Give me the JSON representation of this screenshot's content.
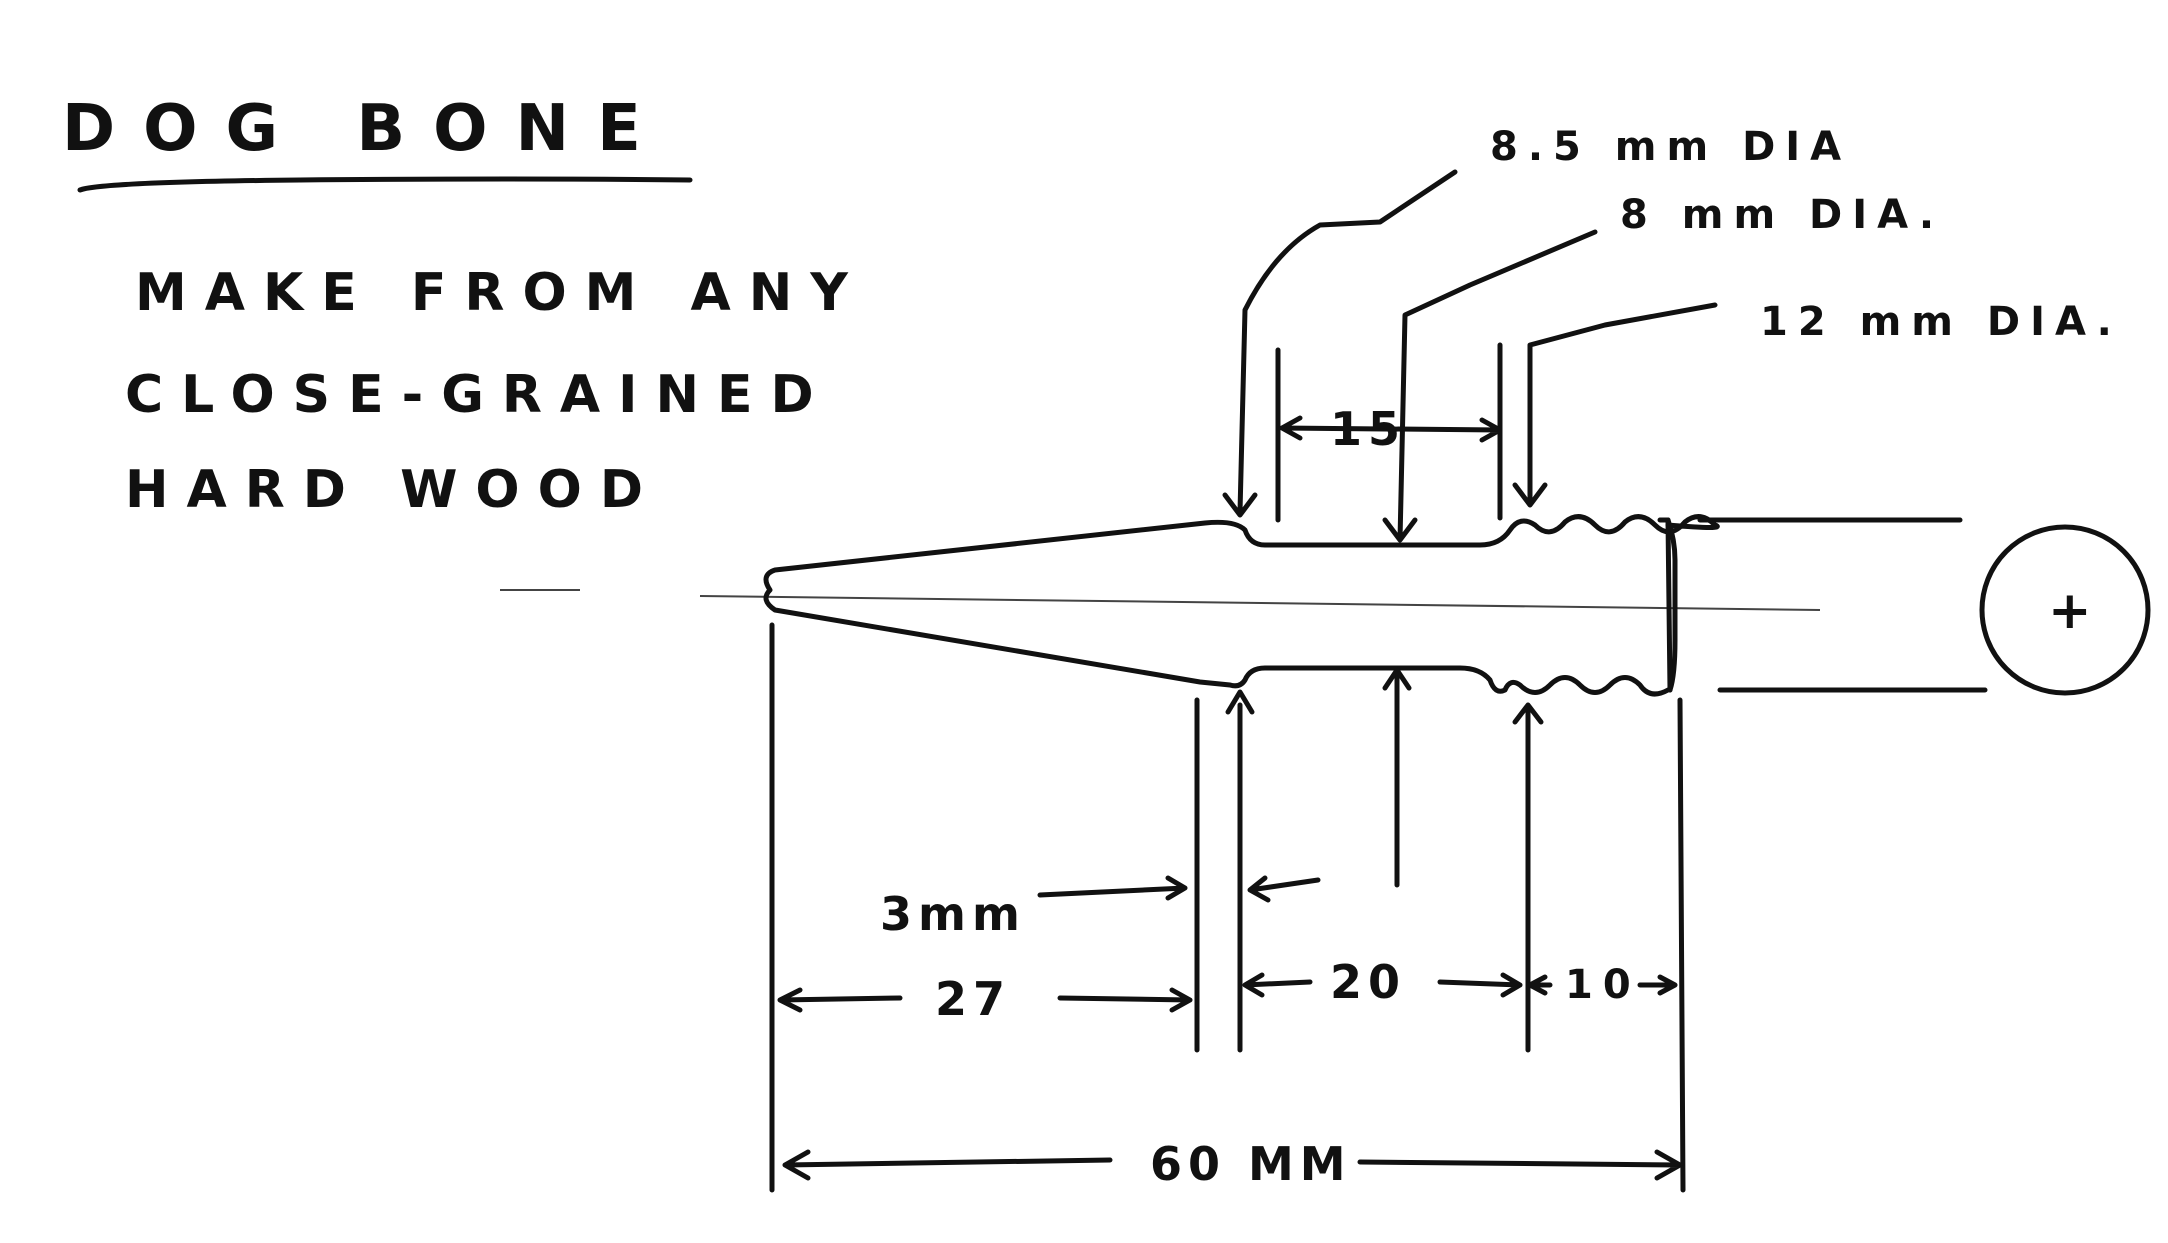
{
  "title": "DOG BONE",
  "note": [
    "MAKE FROM ANY",
    "CLOSE-GRAINED",
    "HARD WOOD"
  ],
  "callouts": {
    "dia_85": "8.5 mm DIA",
    "dia_8": "8 mm DIA.",
    "dia_12": "12 mm DIA."
  },
  "dimensions": {
    "d15": "15",
    "d3": "3mm",
    "d27": "27",
    "d20": "20",
    "d10": "10",
    "d60": "60 MM"
  },
  "end_view_symbol": "+"
}
